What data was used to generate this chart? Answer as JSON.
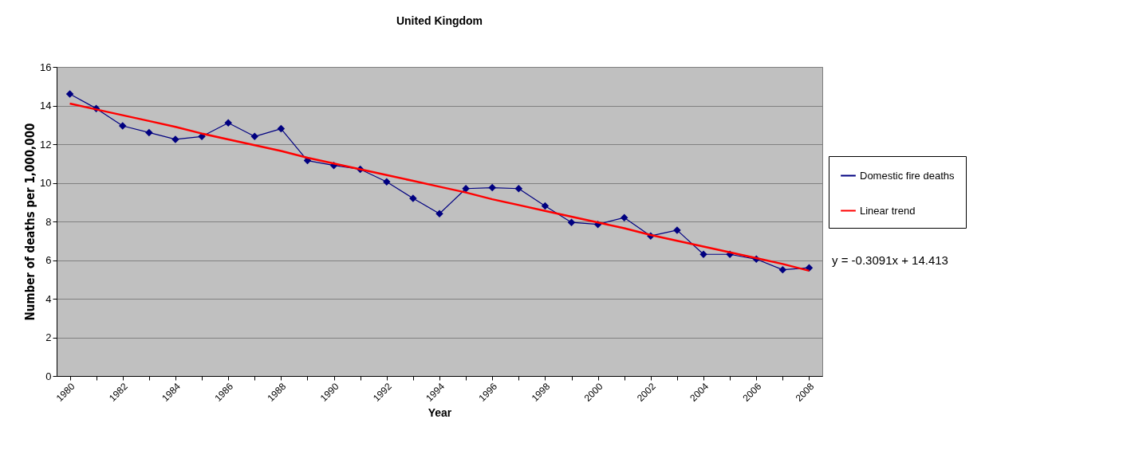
{
  "chart_data": {
    "type": "line",
    "title": "United Kingdom",
    "xlabel": "Year",
    "ylabel": "Number of deaths per 1,000,000",
    "categories": [
      "1980",
      null,
      "1982",
      null,
      "1984",
      null,
      "1986",
      null,
      "1988",
      null,
      "1990",
      null,
      "1992",
      null,
      "1994",
      null,
      "1996",
      null,
      "1998",
      null,
      "2000",
      null,
      "2002",
      null,
      "2004",
      null,
      "2006",
      null,
      "2008"
    ],
    "series": [
      {
        "name": "Domestic fire deaths",
        "color": "#000080",
        "marker": "diamond",
        "values": [
          14.6,
          13.85,
          12.95,
          12.6,
          12.25,
          12.4,
          13.1,
          12.4,
          12.8,
          11.15,
          10.9,
          10.7,
          10.05,
          9.2,
          8.4,
          9.7,
          9.75,
          9.7,
          8.8,
          7.95,
          7.85,
          8.2,
          7.25,
          7.55,
          6.3,
          6.3,
          6.05,
          5.5,
          5.6
        ]
      },
      {
        "name": "Linear trend",
        "type": "line",
        "color": "#ff0000",
        "marker": "none",
        "values": [
          14.1,
          13.8,
          13.5,
          13.2,
          12.9,
          12.55,
          12.25,
          11.95,
          11.65,
          11.3,
          11.0,
          10.7,
          10.4,
          10.1,
          9.8,
          9.5,
          9.15,
          8.85,
          8.55,
          8.25,
          7.95,
          7.65,
          7.3,
          7.0,
          6.7,
          6.4,
          6.1,
          5.8,
          5.45
        ]
      }
    ],
    "ylim": [
      0,
      16
    ],
    "yticks": [
      0,
      2,
      4,
      6,
      8,
      10,
      12,
      14,
      16
    ],
    "grid": "y",
    "legend": "right",
    "annotations": [
      "y = -0.3091x + 14.413"
    ]
  }
}
